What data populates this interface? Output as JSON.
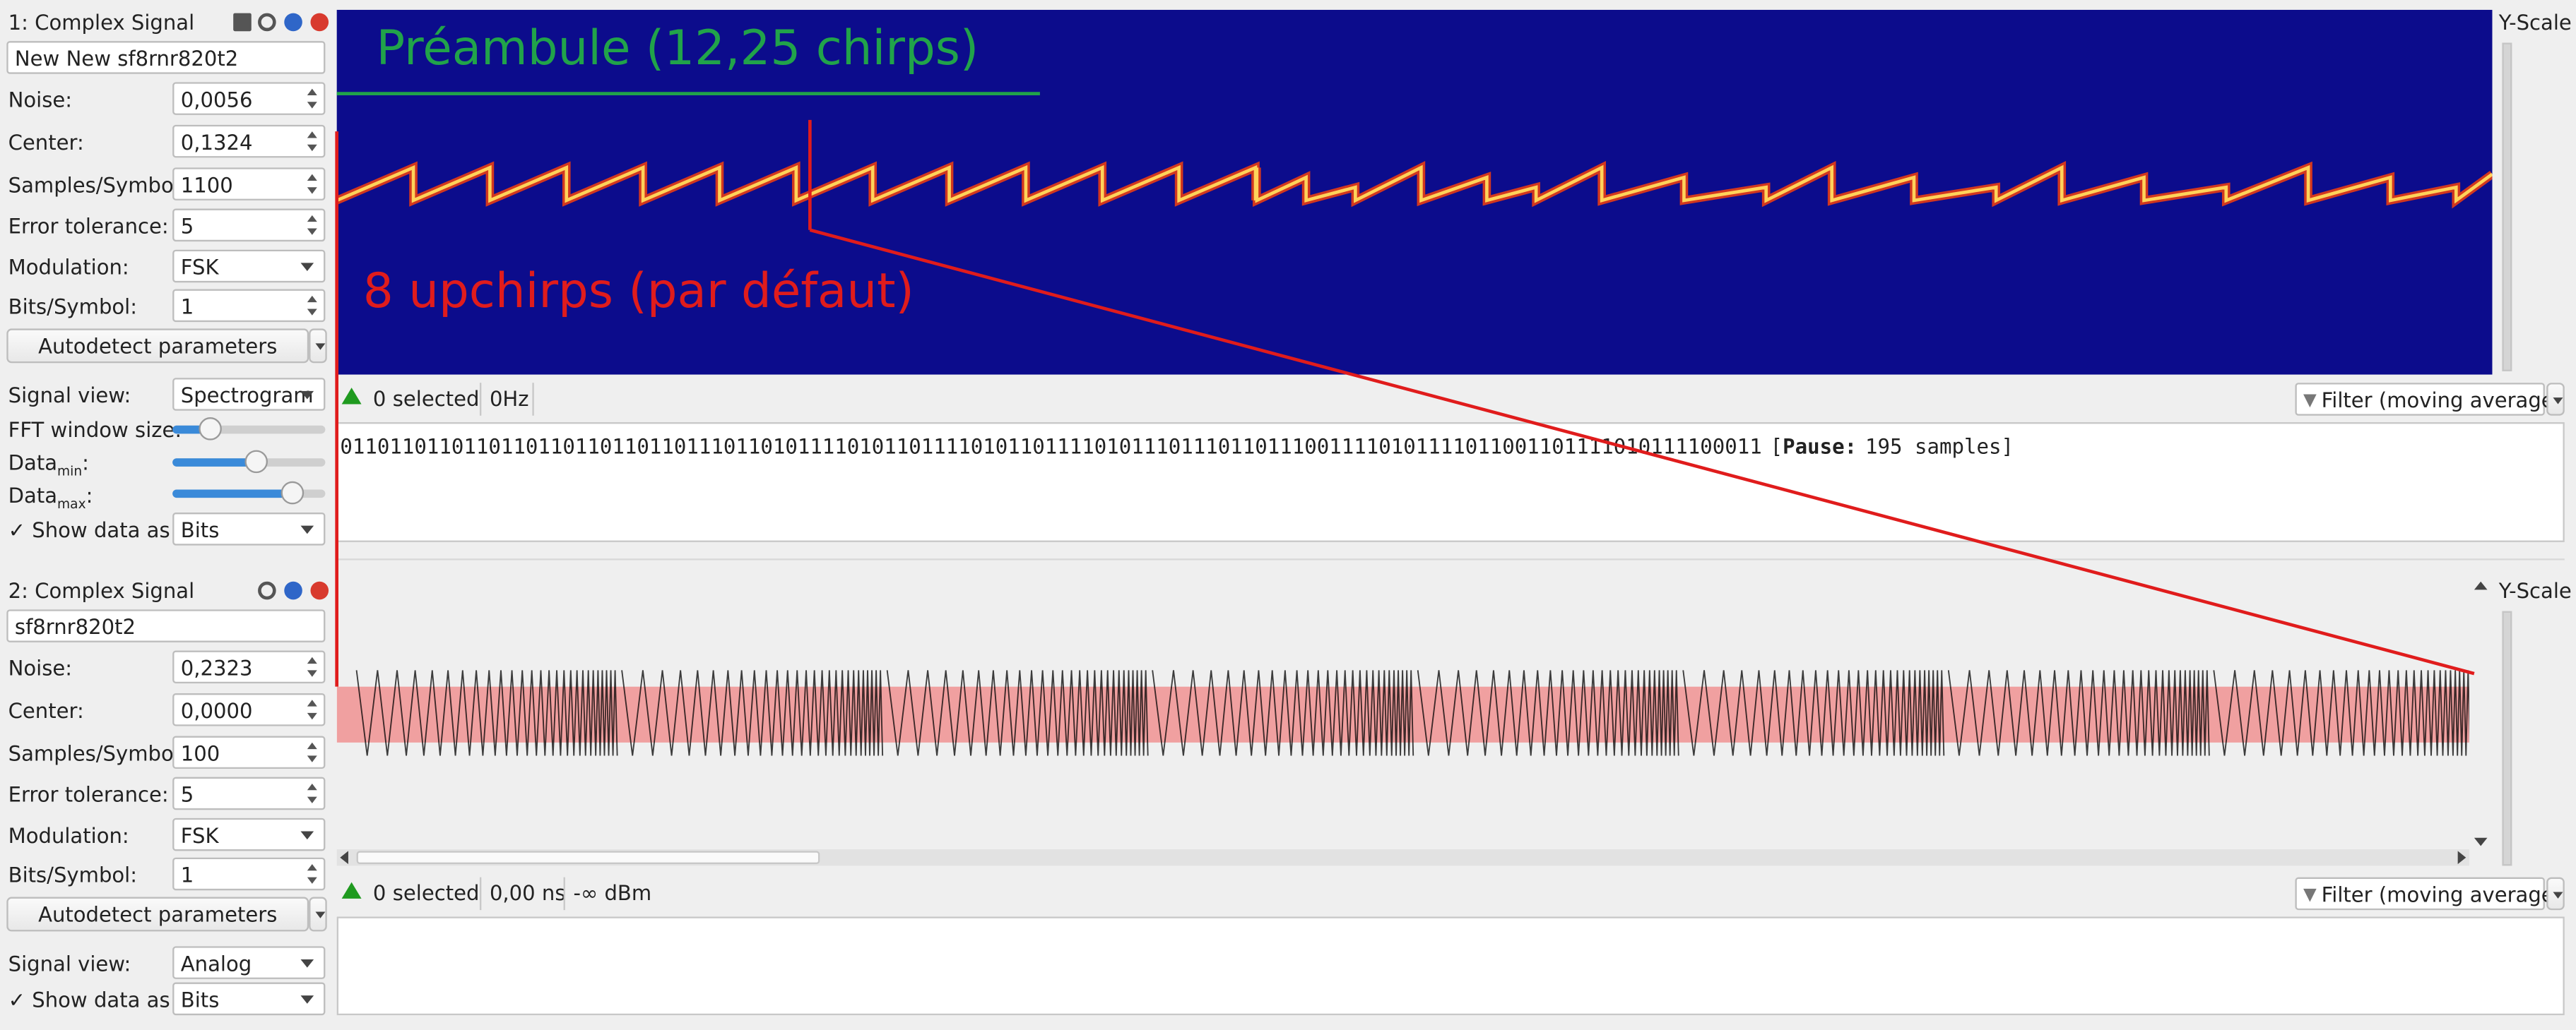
{
  "signals": [
    {
      "title": "1:  Complex Signal",
      "name": "New New sf8rnr820t2",
      "noise_label": "Noise:",
      "noise": "0,0056",
      "center_label": "Center:",
      "center": "0,1324",
      "sps_label": "Samples/Symbol:",
      "sps": "1100",
      "errtol_label": "Error tolerance:",
      "errtol": "5",
      "modulation_label": "Modulation:",
      "modulation": "FSK",
      "bps_label": "Bits/Symbol:",
      "bps": "1",
      "autodetect": "Autodetect parameters",
      "view_label": "Signal view:",
      "view": "Spectrogram",
      "fft_label": "FFT window size:",
      "datamin_label": "Data",
      "datamin_sub": "min",
      "datamax_label": "Data",
      "datamax_sub": "max",
      "colon": ":",
      "showdata_label": "Show data as",
      "showdata": "Bits",
      "check": "✓",
      "yscale": "Y-Scale",
      "status": {
        "count": "0",
        "selected": "selected",
        "freq": "0Hz",
        "filter": "Filter (moving average)"
      },
      "bits": "0110110110110110110110110110111011010111101011011110101101111010111011101101110011110101111011001101111010111100011",
      "pause_open": "[",
      "pause_label": "Pause:",
      "pause_value": "195 samples]",
      "fft_fraction": 0.25,
      "datamin_fraction": 0.55,
      "datamax_fraction": 0.78
    },
    {
      "title": "2:  Complex Signal",
      "name": "sf8rnr820t2",
      "noise_label": "Noise:",
      "noise": "0,2323",
      "center_label": "Center:",
      "center": "0,0000",
      "sps_label": "Samples/Symbol:",
      "sps": "100",
      "errtol_label": "Error tolerance:",
      "errtol": "5",
      "modulation_label": "Modulation:",
      "modulation": "FSK",
      "bps_label": "Bits/Symbol:",
      "bps": "1",
      "autodetect": "Autodetect parameters",
      "view_label": "Signal view:",
      "view": "Analog",
      "showdata_label": "Show data as",
      "showdata": "Bits",
      "check": "✓",
      "yscale": "Y-Scale",
      "status": {
        "count": "0",
        "selected": "selected",
        "time": "0,00 ns",
        "power": "-∞ dBm",
        "filter": "Filter (moving average)"
      }
    }
  ],
  "annotations": {
    "preamble": "Préambule (12,25 chirps)",
    "upchirps": "8 upchirps (par défaut)"
  },
  "colors": {
    "spectrogram_bg": "#0c0c8c",
    "chirp": "#ffb84a",
    "annotation_green": "#21a34a",
    "annotation_red": "#e01c1c",
    "selection": "#f0a0a0"
  }
}
